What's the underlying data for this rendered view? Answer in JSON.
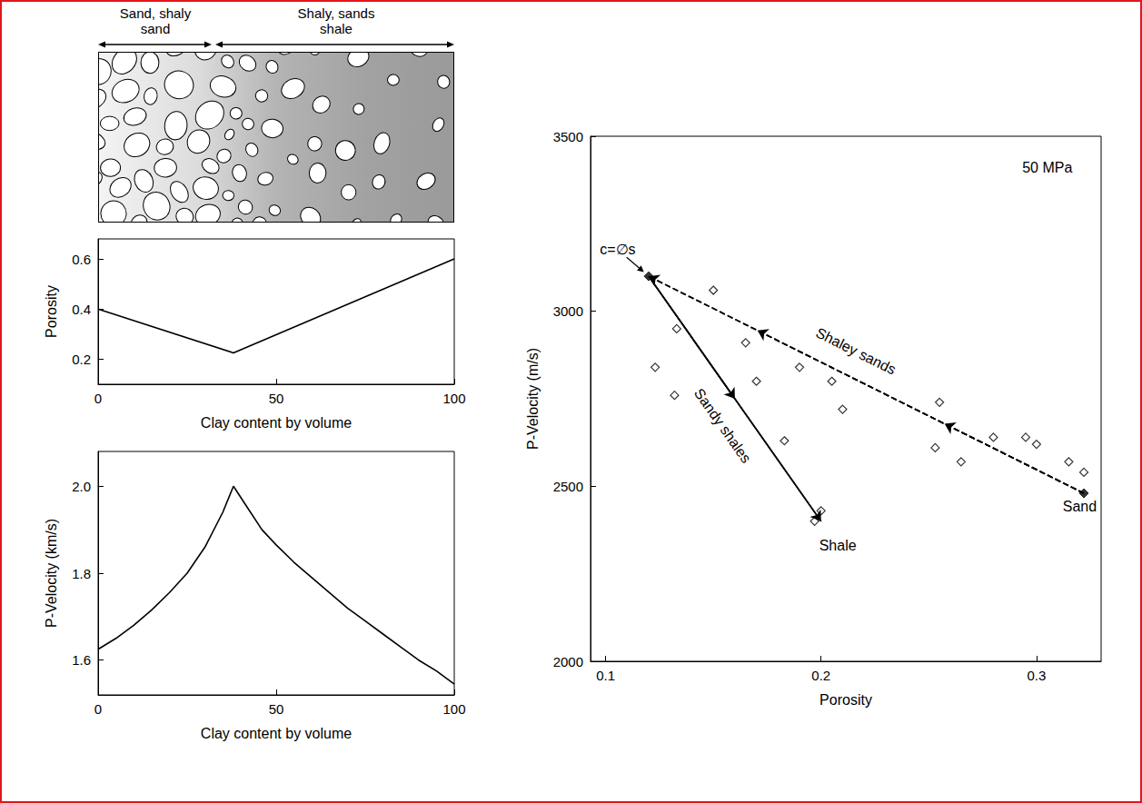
{
  "diagram": {
    "headers": [
      "Sand, shaly sand",
      "Shaly, sands shale"
    ]
  },
  "chart_data": [
    {
      "type": "line",
      "xlabel": "Clay content by volume",
      "ylabel": "Porosity",
      "x": [
        0,
        38,
        100
      ],
      "values": [
        0.4,
        0.225,
        0.6
      ],
      "color": "#000000",
      "xlim": [
        0,
        100
      ],
      "xticks": [
        0,
        50,
        100
      ],
      "ylim": [
        0.1,
        0.68
      ],
      "yticks": [
        0.2,
        0.4,
        0.6
      ],
      "grid": false
    },
    {
      "type": "line",
      "xlabel": "Clay content by volume",
      "ylabel": "P-Velocity (km/s)",
      "x": [
        0,
        5,
        10,
        15,
        20,
        25,
        30,
        35,
        38,
        42,
        46,
        50,
        55,
        60,
        65,
        70,
        75,
        80,
        85,
        90,
        95,
        100
      ],
      "values": [
        1.625,
        1.65,
        1.68,
        1.715,
        1.755,
        1.8,
        1.86,
        1.94,
        2.0,
        1.95,
        1.9,
        1.865,
        1.825,
        1.79,
        1.755,
        1.72,
        1.69,
        1.66,
        1.63,
        1.6,
        1.575,
        1.545
      ],
      "color": "#000000",
      "xlim": [
        0,
        100
      ],
      "xticks": [
        0,
        50,
        100
      ],
      "ylim": [
        1.52,
        2.08
      ],
      "yticks": [
        1.6,
        1.8,
        {
          "value": 2,
          "label": "2.0"
        }
      ],
      "grid": false
    },
    {
      "type": "scatter",
      "xlabel": "Porosity",
      "ylabel": "P-Velocity (m/s)",
      "xlim": [
        0.093,
        0.33
      ],
      "xticks": [
        0.1,
        0.2,
        0.3
      ],
      "ylim": [
        2000,
        3500
      ],
      "yticks": [
        2000,
        2500,
        3000,
        3500
      ],
      "grid": false,
      "series": [
        {
          "type": "scatter",
          "marker": "diamond_open",
          "color": "#000000",
          "x": [
            0.15,
            0.133,
            0.123,
            0.132,
            0.165,
            0.17,
            0.183,
            0.19,
            0.205,
            0.21,
            0.197,
            0.2,
            0.255,
            0.253,
            0.265,
            0.28,
            0.295,
            0.3,
            0.315,
            0.322
          ],
          "values": [
            3060,
            2950,
            2840,
            2760,
            2910,
            2800,
            2630,
            2840,
            2800,
            2720,
            2400,
            2430,
            2740,
            2610,
            2570,
            2640,
            2640,
            2620,
            2570,
            2540
          ]
        },
        {
          "name": "Shaley sands",
          "type": "line",
          "line_style": "dashed",
          "color": "#000000",
          "x": [
            0.322,
            0.12
          ],
          "values": [
            2480,
            3100
          ]
        },
        {
          "name": "Sandy shales",
          "type": "line",
          "line_style": "solid",
          "color": "#000000",
          "x": [
            0.12,
            0.2
          ],
          "values": [
            3100,
            2400
          ]
        },
        {
          "type": "scatter",
          "marker": "diamond",
          "color": "#000000",
          "x": [
            0.12,
            0.322
          ],
          "values": [
            3100,
            2480
          ]
        }
      ],
      "annotations": [
        {
          "text": "50 MPa",
          "x": 0.305,
          "y": 3410
        },
        {
          "text": "c=∅s",
          "x": 0.12,
          "y": 3100
        },
        {
          "text": "Sand",
          "x": 0.322,
          "y": 2480
        },
        {
          "text": "Shale",
          "x": 0.2,
          "y": 2400
        }
      ]
    }
  ]
}
